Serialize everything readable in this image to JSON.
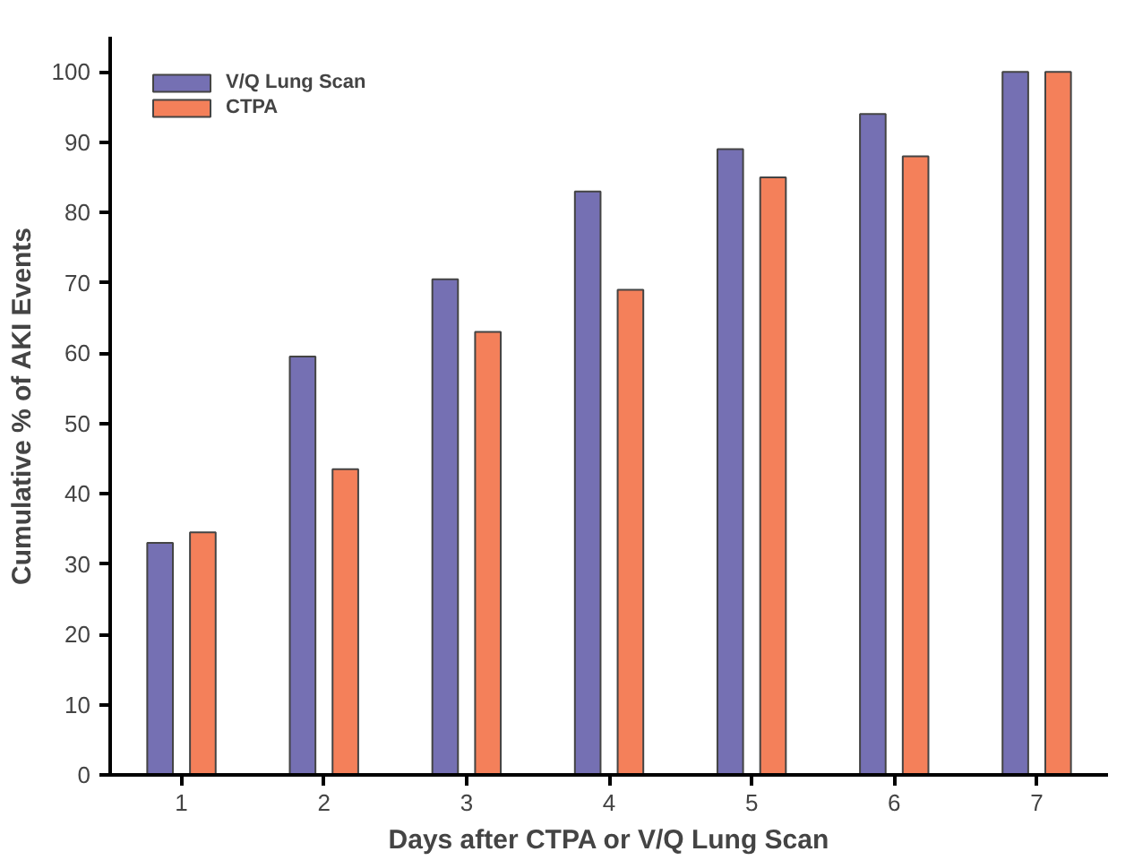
{
  "chart_data": {
    "type": "bar",
    "xlabel": "Days after CTPA or V/Q Lung Scan",
    "ylabel": "Cumulative % of AKI Events",
    "categories": [
      "1",
      "2",
      "3",
      "4",
      "5",
      "6",
      "7"
    ],
    "series": [
      {
        "name": "V/Q Lung Scan",
        "color": "#7570b3",
        "values": [
          33,
          59.5,
          70.5,
          83,
          89,
          94,
          100
        ]
      },
      {
        "name": "CTPA",
        "color": "#f4805a",
        "values": [
          34.5,
          43.5,
          63,
          69,
          85,
          88,
          100
        ]
      }
    ],
    "ylim": [
      0,
      105
    ],
    "yticks": [
      0,
      10,
      20,
      30,
      40,
      50,
      60,
      70,
      80,
      90,
      100
    ],
    "grid": false,
    "legend": "top left"
  }
}
